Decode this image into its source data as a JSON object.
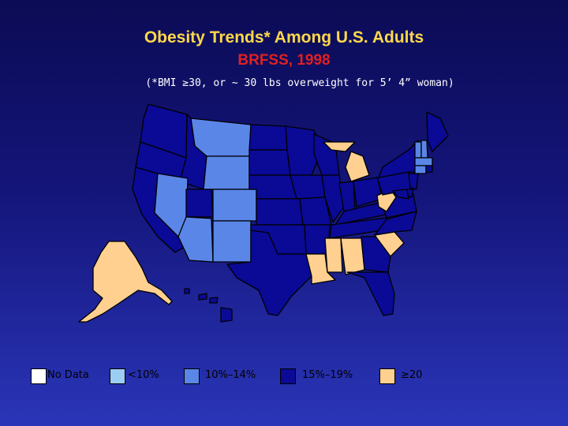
{
  "title": "Obesity Trends* Among U.S. Adults",
  "subtitle": "BRFSS, 1998",
  "note": "(*BMI ≥30, or ~ 30 lbs overweight for 5’ 4” woman)",
  "colors": {
    "no_data": "#ffffff",
    "lt10": "#9ccdf5",
    "c10_14": "#5a86e8",
    "c15_19": "#0a0a96",
    "ge20": "#ffd090",
    "border": "#000000"
  },
  "legend": [
    {
      "label": "No Data",
      "color_key": "no_data"
    },
    {
      "label": "<10%",
      "color_key": "lt10"
    },
    {
      "label": "10%–14%",
      "color_key": "c10_14"
    },
    {
      "label": "15%–19%",
      "color_key": "c15_19"
    },
    {
      "label": "≥20",
      "color_key": "ge20"
    }
  ],
  "states": {
    "WA": "c15_19",
    "OR": "c15_19",
    "CA": "c15_19",
    "ID": "c15_19",
    "NV": "c10_14",
    "MT": "c10_14",
    "WY": "c10_14",
    "UT": "c15_19",
    "CO": "c10_14",
    "AZ": "c10_14",
    "NM": "c10_14",
    "ND": "c15_19",
    "SD": "c15_19",
    "NE": "c15_19",
    "KS": "c15_19",
    "OK": "c15_19",
    "TX": "c15_19",
    "MN": "c15_19",
    "IA": "c15_19",
    "MO": "c15_19",
    "AR": "c15_19",
    "LA": "ge20",
    "WI": "c15_19",
    "IL": "c15_19",
    "MI": "ge20",
    "IN": "c15_19",
    "OH": "c15_19",
    "KY": "c15_19",
    "TN": "c15_19",
    "MS": "ge20",
    "AL": "ge20",
    "GA": "c15_19",
    "FL": "c15_19",
    "SC": "ge20",
    "NC": "c15_19",
    "VA": "c15_19",
    "WV": "ge20",
    "PA": "c15_19",
    "NY": "c15_19",
    "VT": "c10_14",
    "NH": "c10_14",
    "ME": "c15_19",
    "MA": "c10_14",
    "CT": "c10_14",
    "RI": "c15_19",
    "NJ": "c15_19",
    "DE": "c15_19",
    "MD": "c15_19",
    "AK": "ge20",
    "HI": "c15_19"
  }
}
